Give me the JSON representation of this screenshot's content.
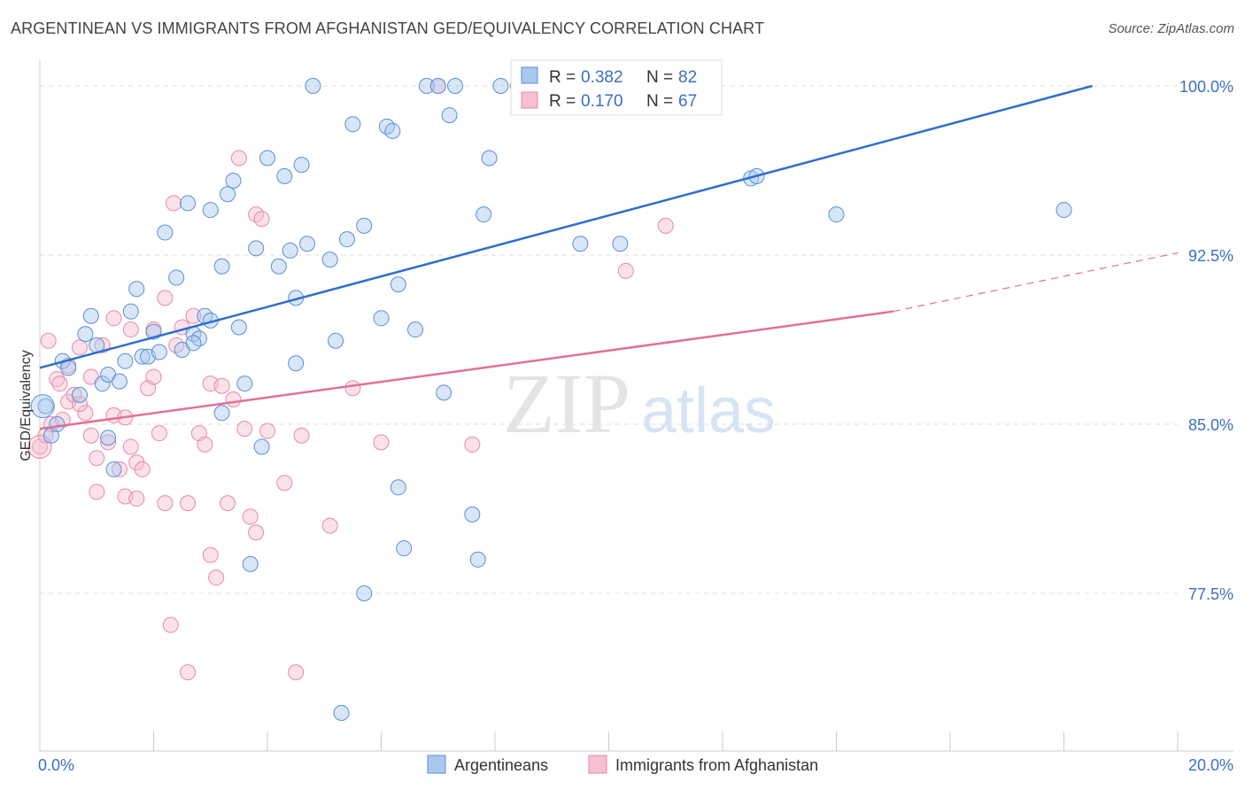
{
  "title": "ARGENTINEAN VS IMMIGRANTS FROM AFGHANISTAN GED/EQUIVALENCY CORRELATION CHART",
  "source": "Source: ZipAtlas.com",
  "watermark": {
    "zip": "ZIP",
    "atlas": "atlas"
  },
  "colors": {
    "blue_fill": "#a9c8ef",
    "blue_stroke": "#5b8fd6",
    "blue_line": "#2f6fcc",
    "pink_fill": "#f7bfd0",
    "pink_stroke": "#e58aa7",
    "pink_line": "#e0709a",
    "tick_text": "#3a6fc4",
    "grid": "#dddddd"
  },
  "stats": {
    "rows": [
      {
        "r_label": "R =",
        "r": "0.382",
        "n_label": "N =",
        "n": "82"
      },
      {
        "r_label": "R =",
        "r": "0.170",
        "n_label": "N =",
        "n": "67"
      }
    ]
  },
  "chart_data": {
    "type": "scatter",
    "title": "ARGENTINEAN VS IMMIGRANTS FROM AFGHANISTAN GED/EQUIVALENCY CORRELATION CHART",
    "xlabel": "",
    "ylabel": "GED/Equivalency",
    "xlim": [
      0,
      20
    ],
    "ylim": [
      70.8,
      101.2
    ],
    "x_tick_labels": [
      "0.0%",
      "20.0%"
    ],
    "y_ticks": [
      77.5,
      85.0,
      92.5,
      100.0
    ],
    "y_tick_labels": [
      "77.5%",
      "85.0%",
      "92.5%",
      "100.0%"
    ],
    "grid": "horizontal dashed",
    "legend_position": "bottom-center",
    "series": [
      {
        "name": "Argentineans",
        "trend": {
          "x": [
            0,
            18.5
          ],
          "y": [
            87.5,
            100.0
          ]
        },
        "points": [
          [
            0.2,
            84.5
          ],
          [
            0.1,
            85.8
          ],
          [
            0.3,
            85.0
          ],
          [
            0.4,
            87.8
          ],
          [
            0.5,
            87.5
          ],
          [
            0.7,
            86.3
          ],
          [
            0.8,
            89.0
          ],
          [
            0.9,
            89.8
          ],
          [
            1.0,
            88.5
          ],
          [
            1.1,
            86.8
          ],
          [
            1.2,
            87.2
          ],
          [
            1.3,
            83.0
          ],
          [
            1.4,
            86.9
          ],
          [
            1.5,
            87.8
          ],
          [
            1.6,
            90.0
          ],
          [
            1.7,
            91.0
          ],
          [
            1.8,
            88.0
          ],
          [
            1.9,
            88.0
          ],
          [
            2.0,
            89.1
          ],
          [
            2.1,
            88.2
          ],
          [
            2.2,
            93.5
          ],
          [
            2.4,
            91.5
          ],
          [
            2.5,
            88.3
          ],
          [
            2.6,
            94.8
          ],
          [
            2.7,
            89.0
          ],
          [
            2.8,
            88.8
          ],
          [
            2.9,
            89.8
          ],
          [
            3.0,
            89.6
          ],
          [
            3.0,
            94.5
          ],
          [
            3.2,
            85.5
          ],
          [
            3.2,
            92.0
          ],
          [
            3.3,
            95.2
          ],
          [
            3.4,
            95.8
          ],
          [
            3.5,
            89.3
          ],
          [
            3.6,
            86.8
          ],
          [
            3.7,
            78.8
          ],
          [
            3.8,
            92.8
          ],
          [
            3.9,
            84.0
          ],
          [
            4.0,
            96.8
          ],
          [
            4.2,
            92.0
          ],
          [
            4.3,
            96.0
          ],
          [
            4.4,
            92.7
          ],
          [
            4.5,
            90.6
          ],
          [
            4.5,
            87.7
          ],
          [
            4.6,
            96.5
          ],
          [
            4.7,
            93.0
          ],
          [
            4.8,
            100.0
          ],
          [
            5.1,
            92.3
          ],
          [
            5.2,
            88.7
          ],
          [
            5.4,
            93.2
          ],
          [
            5.5,
            98.3
          ],
          [
            5.7,
            93.8
          ],
          [
            5.7,
            77.5
          ],
          [
            6.0,
            89.7
          ],
          [
            6.1,
            98.2
          ],
          [
            6.2,
            98.0
          ],
          [
            6.3,
            91.2
          ],
          [
            6.3,
            82.2
          ],
          [
            6.4,
            79.5
          ],
          [
            6.6,
            89.2
          ],
          [
            6.8,
            100.0
          ],
          [
            7.0,
            100.0
          ],
          [
            7.1,
            86.4
          ],
          [
            7.2,
            98.7
          ],
          [
            7.3,
            100.0
          ],
          [
            7.6,
            81.0
          ],
          [
            7.7,
            79.0
          ],
          [
            7.8,
            94.3
          ],
          [
            7.9,
            96.8
          ],
          [
            8.1,
            100.0
          ],
          [
            8.4,
            100.0
          ],
          [
            9.0,
            100.0
          ],
          [
            9.2,
            100.0
          ],
          [
            9.5,
            93.0
          ],
          [
            10.2,
            93.0
          ],
          [
            12.5,
            95.9
          ],
          [
            12.6,
            96.0
          ],
          [
            14.0,
            94.3
          ],
          [
            18.0,
            94.5
          ],
          [
            5.3,
            72.2
          ],
          [
            2.7,
            88.6
          ],
          [
            1.2,
            84.4
          ]
        ]
      },
      {
        "name": "Immigrants from Afghanistan",
        "trend": {
          "x": [
            0,
            15
          ],
          "y": [
            84.8,
            90.0
          ]
        },
        "trend_dashed": {
          "x": [
            15,
            20
          ],
          "y": [
            90.0,
            92.6
          ]
        },
        "points": [
          [
            0.0,
            84.0
          ],
          [
            0.1,
            84.5
          ],
          [
            0.2,
            85.0
          ],
          [
            0.3,
            87.0
          ],
          [
            0.4,
            85.2
          ],
          [
            0.5,
            86.0
          ],
          [
            0.6,
            86.3
          ],
          [
            0.7,
            88.4
          ],
          [
            0.8,
            85.5
          ],
          [
            0.9,
            87.1
          ],
          [
            0.9,
            84.5
          ],
          [
            1.0,
            83.5
          ],
          [
            1.0,
            82.0
          ],
          [
            1.1,
            88.5
          ],
          [
            1.2,
            84.2
          ],
          [
            1.3,
            89.7
          ],
          [
            1.3,
            85.4
          ],
          [
            1.4,
            83.0
          ],
          [
            1.5,
            85.3
          ],
          [
            1.5,
            81.8
          ],
          [
            1.6,
            84.0
          ],
          [
            1.7,
            83.3
          ],
          [
            1.7,
            81.7
          ],
          [
            1.8,
            83.0
          ],
          [
            1.9,
            86.6
          ],
          [
            2.0,
            87.1
          ],
          [
            2.0,
            89.2
          ],
          [
            2.1,
            84.6
          ],
          [
            2.2,
            81.5
          ],
          [
            2.2,
            90.6
          ],
          [
            2.3,
            76.1
          ],
          [
            2.4,
            88.5
          ],
          [
            2.5,
            89.3
          ],
          [
            2.6,
            81.5
          ],
          [
            2.6,
            74.0
          ],
          [
            2.7,
            89.8
          ],
          [
            2.8,
            84.6
          ],
          [
            2.9,
            84.1
          ],
          [
            3.0,
            79.2
          ],
          [
            3.0,
            86.8
          ],
          [
            3.1,
            78.2
          ],
          [
            3.2,
            86.7
          ],
          [
            3.3,
            81.5
          ],
          [
            3.4,
            86.1
          ],
          [
            3.5,
            96.8
          ],
          [
            3.6,
            84.8
          ],
          [
            3.7,
            80.9
          ],
          [
            3.8,
            80.2
          ],
          [
            3.8,
            94.3
          ],
          [
            4.0,
            84.7
          ],
          [
            4.3,
            82.4
          ],
          [
            4.5,
            74.0
          ],
          [
            4.6,
            84.5
          ],
          [
            5.1,
            80.5
          ],
          [
            5.5,
            86.6
          ],
          [
            6.0,
            84.2
          ],
          [
            7.0,
            100.0
          ],
          [
            7.6,
            84.1
          ],
          [
            11.0,
            93.8
          ],
          [
            10.3,
            91.8
          ],
          [
            0.15,
            88.7
          ],
          [
            0.35,
            86.8
          ],
          [
            1.6,
            89.2
          ],
          [
            2.35,
            94.8
          ],
          [
            3.9,
            94.1
          ],
          [
            0.7,
            85.9
          ],
          [
            0.5,
            87.6
          ]
        ]
      }
    ]
  },
  "legend": {
    "items": [
      "Argentineans",
      "Immigrants from Afghanistan"
    ]
  }
}
